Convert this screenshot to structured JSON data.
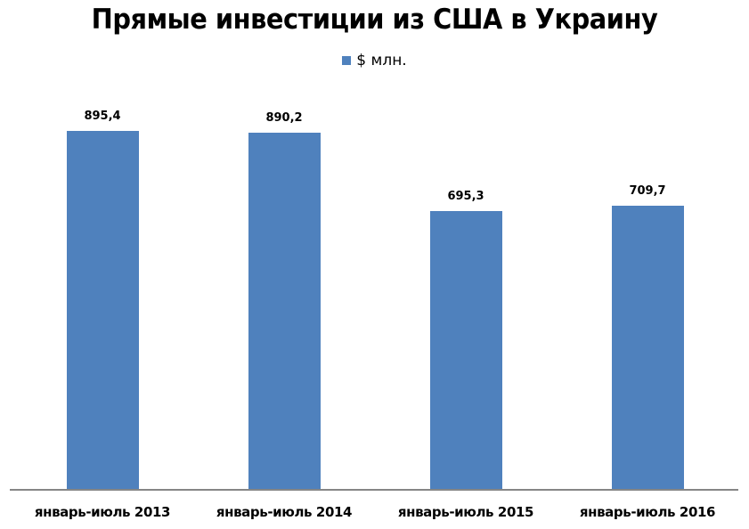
{
  "chart_data": {
    "type": "bar",
    "title": "Прямые инвестиции из США в Украину",
    "xlabel": "",
    "ylabel": "",
    "legend": {
      "position": "top",
      "entries": [
        "$ млн."
      ]
    },
    "categories": [
      "январь-июль 2013",
      "январь-июль 2014",
      "январь-июль 2015",
      "январь-июль 2016"
    ],
    "series": [
      {
        "name": "$ млн.",
        "values": [
          895.4,
          890.2,
          695.3,
          709.7
        ],
        "labels": [
          "895,4",
          "890,2",
          "695,3",
          "709,7"
        ],
        "color": "#4f81bd"
      }
    ],
    "ylim": [
      0,
      1000
    ],
    "grid": false,
    "y_axis_visible": false
  }
}
